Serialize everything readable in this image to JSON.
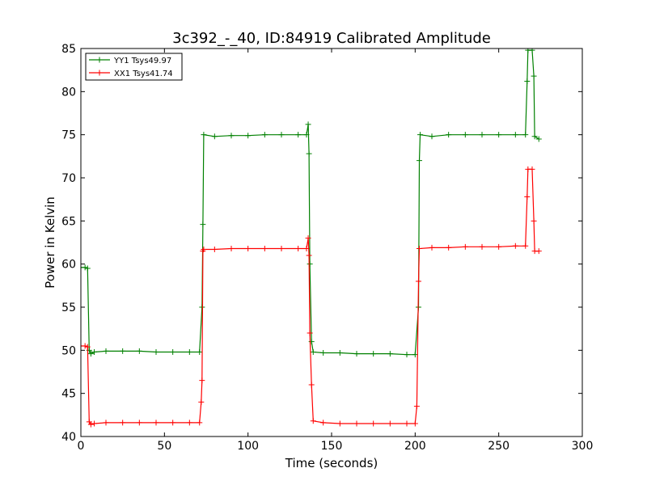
{
  "chart_data": {
    "type": "line",
    "title": "3c392_-_40, ID:84919 Calibrated Amplitude",
    "xlabel": "Time (seconds)",
    "ylabel": "Power in Kelvin",
    "xlim": [
      0,
      300
    ],
    "ylim": [
      40,
      85
    ],
    "xticks": [
      0,
      50,
      100,
      150,
      200,
      250,
      300
    ],
    "yticks": [
      40,
      45,
      50,
      55,
      60,
      65,
      70,
      75,
      80,
      85
    ],
    "grid": false,
    "legend": {
      "placement": "top-left"
    },
    "series": [
      {
        "name": "YY1 Tsys49.97",
        "color": "#008000",
        "points": [
          [
            0,
            59.6
          ],
          [
            2.5,
            59.6
          ],
          [
            4,
            59.5
          ],
          [
            5,
            50.0
          ],
          [
            6,
            49.6
          ],
          [
            8,
            49.8
          ],
          [
            15,
            49.9
          ],
          [
            25,
            49.9
          ],
          [
            35,
            49.9
          ],
          [
            45,
            49.8
          ],
          [
            55,
            49.8
          ],
          [
            65,
            49.8
          ],
          [
            71,
            49.8
          ],
          [
            72.5,
            55
          ],
          [
            73,
            64.6
          ],
          [
            73.5,
            75.0
          ],
          [
            80,
            74.8
          ],
          [
            90,
            74.9
          ],
          [
            100,
            74.9
          ],
          [
            110,
            75.0
          ],
          [
            120,
            75.0
          ],
          [
            130,
            75.0
          ],
          [
            135,
            75.0
          ],
          [
            136,
            76.2
          ],
          [
            136.5,
            72.8
          ],
          [
            137,
            60
          ],
          [
            138,
            51
          ],
          [
            139,
            49.8
          ],
          [
            145,
            49.7
          ],
          [
            155,
            49.7
          ],
          [
            165,
            49.6
          ],
          [
            175,
            49.6
          ],
          [
            185,
            49.6
          ],
          [
            195,
            49.5
          ],
          [
            200,
            49.5
          ],
          [
            202,
            55
          ],
          [
            202.5,
            72.0
          ],
          [
            203,
            75.0
          ],
          [
            210,
            74.8
          ],
          [
            220,
            75.0
          ],
          [
            230,
            75.0
          ],
          [
            240,
            75.0
          ],
          [
            250,
            75.0
          ],
          [
            260,
            75.0
          ],
          [
            266,
            75.0
          ],
          [
            267,
            81.2
          ],
          [
            267.5,
            84.8
          ],
          [
            270,
            84.8
          ],
          [
            271,
            81.8
          ],
          [
            271.5,
            74.8
          ],
          [
            274,
            74.5
          ]
        ]
      },
      {
        "name": "XX1 Tsys41.74",
        "color": "#ff0000",
        "points": [
          [
            0,
            50.5
          ],
          [
            2.5,
            50.5
          ],
          [
            4,
            50.4
          ],
          [
            5,
            41.7
          ],
          [
            6,
            41.4
          ],
          [
            8,
            41.5
          ],
          [
            15,
            41.6
          ],
          [
            25,
            41.6
          ],
          [
            35,
            41.6
          ],
          [
            45,
            41.6
          ],
          [
            55,
            41.6
          ],
          [
            65,
            41.6
          ],
          [
            71,
            41.6
          ],
          [
            72,
            44
          ],
          [
            72.5,
            46.5
          ],
          [
            73,
            61.5
          ],
          [
            73.5,
            61.7
          ],
          [
            80,
            61.7
          ],
          [
            90,
            61.8
          ],
          [
            100,
            61.8
          ],
          [
            110,
            61.8
          ],
          [
            120,
            61.8
          ],
          [
            130,
            61.8
          ],
          [
            135,
            61.8
          ],
          [
            136,
            63.0
          ],
          [
            136.5,
            61.0
          ],
          [
            137,
            52.0
          ],
          [
            138,
            46.0
          ],
          [
            139,
            41.8
          ],
          [
            145,
            41.6
          ],
          [
            155,
            41.5
          ],
          [
            165,
            41.5
          ],
          [
            175,
            41.5
          ],
          [
            185,
            41.5
          ],
          [
            195,
            41.5
          ],
          [
            200,
            41.5
          ],
          [
            201,
            43.5
          ],
          [
            202,
            58.0
          ],
          [
            202.5,
            61.8
          ],
          [
            210,
            61.9
          ],
          [
            220,
            61.9
          ],
          [
            230,
            62.0
          ],
          [
            240,
            62.0
          ],
          [
            250,
            62.0
          ],
          [
            260,
            62.1
          ],
          [
            266,
            62.1
          ],
          [
            267,
            67.8
          ],
          [
            267.5,
            71.0
          ],
          [
            270,
            71.0
          ],
          [
            271,
            65.0
          ],
          [
            271.5,
            61.5
          ],
          [
            274,
            61.5
          ]
        ]
      }
    ]
  }
}
